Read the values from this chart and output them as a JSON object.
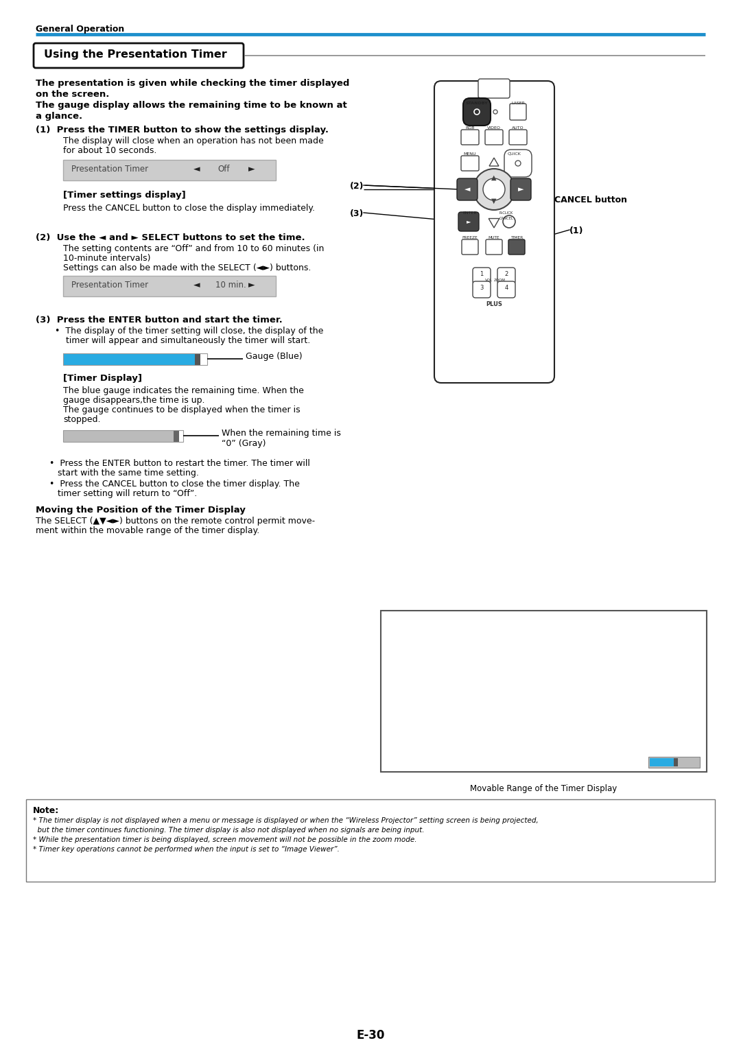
{
  "page_bg": "#ffffff",
  "header_text": "General Operation",
  "header_line_color": "#1e90cc",
  "section_title": "Using the Presentation Timer",
  "intro_line1": "The presentation is given while checking the timer displayed",
  "intro_line2": "on the screen.",
  "intro_line3": "The gauge display allows the remaining time to be known at",
  "intro_line4": "a glance.",
  "step1_bold": "(1)  Press the TIMER button to show the settings display.",
  "step1_text1": "The display will close when an operation has not been made",
  "step1_text2": "for about 10 seconds.",
  "timer_label": "[Timer settings display]",
  "timer_cancel": "Press the CANCEL button to close the display immediately.",
  "step2_bold": "(2)  Use the ◄ and ► SELECT buttons to set the time.",
  "step2_text1": "The setting contents are “Off” and from 10 to 60 minutes (in",
  "step2_text2": "10-minute intervals)",
  "step2_text3": "Settings can also be made with the SELECT (◄►) buttons.",
  "step3_bold": "(3)  Press the ENTER button and start the timer.",
  "step3_bullet1": "•  The display of the timer setting will close, the display of the",
  "step3_bullet2": "    timer will appear and simultaneously the timer will start.",
  "gauge_blue_label": "Gauge (Blue)",
  "timer_display_title": "[Timer Display]",
  "td_line1": "The blue gauge indicates the remaining time. When the",
  "td_line2": "gauge disappears,the time is up.",
  "td_line3": "The gauge continues to be displayed when the timer is",
  "td_line4": "stopped.",
  "gray_label_line1": "When the remaining time is",
  "gray_label_line2": "“0” (Gray)",
  "enter_bullet1": "•  Press the ENTER button to restart the timer. The timer will",
  "enter_bullet2": "   start with the same time setting.",
  "cancel_bullet1": "•  Press the CANCEL button to close the timer display. The",
  "cancel_bullet2": "   timer setting will return to “Off”.",
  "moving_title": "Moving the Position of the Timer Display",
  "moving_text1": "The SELECT (▲▼◄►) buttons on the remote control permit move-",
  "moving_text2": "ment within the movable range of the timer display.",
  "movable_label": "Movable Range of the Timer Display",
  "note_title": "Note:",
  "note1a": "* The timer display is not displayed when a menu or message is displayed or when the “Wireless Projector” setting screen is being projected,",
  "note1b": "  but the timer continues functioning. The timer display is also not displayed when no signals are being input.",
  "note2": "* While the presentation timer is being displayed, screen movement will not be possible in the zoom mode.",
  "note3": "* Timer key operations cannot be performed when the input is set to “Image Viewer”.",
  "page_number": "E-30",
  "rc_label2": "(2)",
  "rc_label_cancel": "CANCEL button",
  "rc_label3": "(3)",
  "rc_label1": "(1)"
}
